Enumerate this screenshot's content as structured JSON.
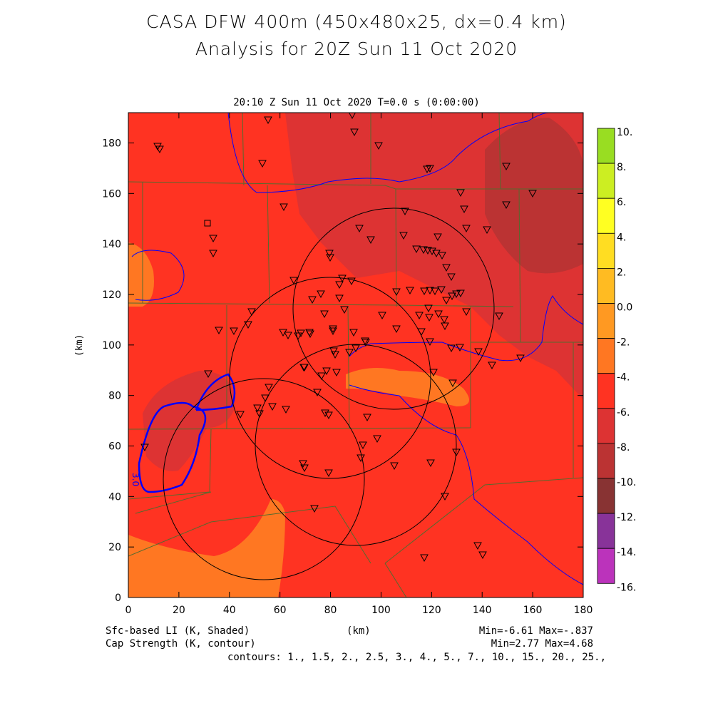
{
  "title_line1": "CASA DFW 400m (450x480x25, dx=0.4 km)",
  "title_line2": "Analysis for 20Z Sun 11 Oct 2020",
  "subtitle": "20:10 Z Sun 11 Oct 2020    T=0.0 s (0:00:00)",
  "x_axis": {
    "label": "(km)",
    "ticks": [
      "0",
      "20",
      "40",
      "60",
      "80",
      "100",
      "120",
      "140",
      "160",
      "180"
    ]
  },
  "y_axis": {
    "label": "(km)",
    "ticks": [
      "0",
      "20",
      "40",
      "60",
      "80",
      "100",
      "120",
      "140",
      "160",
      "180"
    ]
  },
  "colorbar": {
    "labels": [
      "10.",
      "8.",
      "6.",
      "4.",
      "2.",
      "0.0",
      "-2.",
      "-4.",
      "-6.",
      "-8.",
      "-10.",
      "-12.",
      "-14.",
      "-16."
    ],
    "colors": [
      "#99dd22",
      "#ccee22",
      "#ffff22",
      "#ffdd22",
      "#ffbb22",
      "#ff9922",
      "#ff7722",
      "#ff3322",
      "#dd3333",
      "#bb3333",
      "#883333",
      "#883399",
      "#bb33bb",
      "#dd44dd"
    ]
  },
  "contour_label": "3.0",
  "footer": {
    "left1": "Sfc-based LI (K, Shaded)",
    "left2": "Cap Strength (K, contour)",
    "xlabel": "(km)",
    "right1": "Min=-6.61 Max=-.837",
    "right2": "Min=2.77 Max=4.68",
    "contours": "contours: 1., 1.5, 2., 2.5, 3., 4., 5., 7., 10., 15., 20., 25.,"
  },
  "colors": {
    "base": "#ff3322",
    "dark_region": "#dd3333",
    "darker_region": "#bb3333",
    "warm_region": "#ff7722",
    "contour": "#0000ff"
  }
}
